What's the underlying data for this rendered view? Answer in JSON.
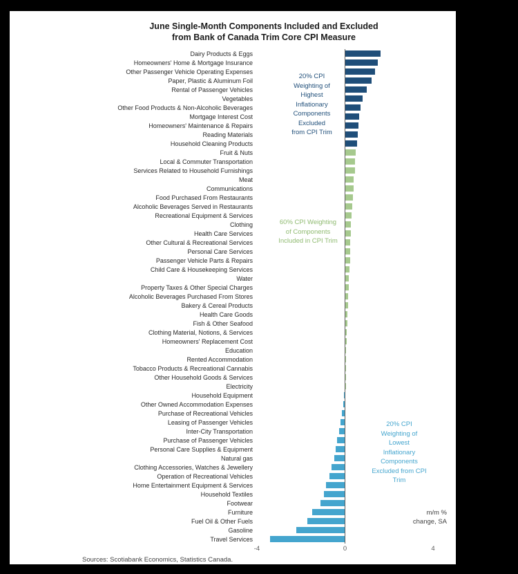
{
  "title": {
    "line1": "June Single-Month Components Included and Excluded",
    "line2": "from Bank of Canada Trim Core CPI Measure"
  },
  "source": "Sources: Scotiabank Economics, Statistics Canada.",
  "axis_note": "m/m %\nchange, SA",
  "colors": {
    "excluded_high": "#1F4E79",
    "included": "#A6C98E",
    "excluded_low": "#44A5CE",
    "zero_line": "#595959",
    "tick_text": "#595959"
  },
  "annotations": [
    {
      "text": "20% CPI\nWeighting of\nHighest\nInflationary\nComponents\nExcluded\nfrom CPI Trim",
      "color": "#1F4E79"
    },
    {
      "text": "60% CPI Weighting\nof Components\nIncluded in CPI Trim",
      "color": "#8FBA70"
    },
    {
      "text": "20% CPI\nWeighting of\nLowest\nInflationary\nComponents\nExcluded from CPI\nTrim",
      "color": "#44A5CE"
    }
  ],
  "chart_data": {
    "type": "bar",
    "orientation": "horizontal",
    "title": "June Single-Month Components Included and Excluded from Bank of Canada Trim Core CPI Measure",
    "xlabel": "m/m % change, SA",
    "xlim": [
      -4,
      4
    ],
    "ticks": [
      "-4",
      "0",
      "4"
    ],
    "grid": false,
    "series": [
      {
        "name": "20% CPI Weighting of Highest Inflationary Components Excluded from CPI Trim",
        "color": "#1F4E79",
        "items": [
          {
            "label": "Dairy Products & Eggs",
            "value": 1.6
          },
          {
            "label": "Homeowners' Home & Mortgage Insurance",
            "value": 1.5
          },
          {
            "label": "Other Passenger Vehicle Operating Expenses",
            "value": 1.35
          },
          {
            "label": "Paper, Plastic & Aluminum Foil",
            "value": 1.2
          },
          {
            "label": "Rental of Passenger Vehicles",
            "value": 1.0
          },
          {
            "label": "Vegetables",
            "value": 0.8
          },
          {
            "label": "Other Food Products & Non-Alcoholic Beverages",
            "value": 0.7
          },
          {
            "label": "Mortgage Interest Cost",
            "value": 0.65
          },
          {
            "label": "Homeowners' Maintenance & Repairs",
            "value": 0.6
          },
          {
            "label": "Reading Materials",
            "value": 0.58
          },
          {
            "label": "Household Cleaning Products",
            "value": 0.55
          }
        ]
      },
      {
        "name": "60% CPI Weighting of Components Included in CPI Trim",
        "color": "#A6C98E",
        "items": [
          {
            "label": "Fruit & Nuts",
            "value": 0.5
          },
          {
            "label": "Local & Commuter Transportation",
            "value": 0.47
          },
          {
            "label": "Services Related to Household Furnishings",
            "value": 0.44
          },
          {
            "label": "Meat",
            "value": 0.4
          },
          {
            "label": "Communications",
            "value": 0.38
          },
          {
            "label": "Food Purchased From Restaurants",
            "value": 0.35
          },
          {
            "label": "Alcoholic Beverages Served in Restaurants",
            "value": 0.33
          },
          {
            "label": "Recreational Equipment & Services",
            "value": 0.3
          },
          {
            "label": "Clothing",
            "value": 0.28
          },
          {
            "label": "Health Care Services",
            "value": 0.26
          },
          {
            "label": "Other Cultural & Recreational Services",
            "value": 0.25
          },
          {
            "label": "Personal Care Services",
            "value": 0.24
          },
          {
            "label": "Passenger Vehicle Parts & Repairs",
            "value": 0.22
          },
          {
            "label": "Child Care & Housekeeping Services",
            "value": 0.2
          },
          {
            "label": "Water",
            "value": 0.18
          },
          {
            "label": "Property Taxes & Other Special Charges",
            "value": 0.16
          },
          {
            "label": "Alcoholic Beverages Purchased From Stores",
            "value": 0.15
          },
          {
            "label": "Bakery & Cereal Products",
            "value": 0.13
          },
          {
            "label": "Health Care Goods",
            "value": 0.12
          },
          {
            "label": "Fish & Other Seafood",
            "value": 0.1
          },
          {
            "label": "Clothing Material, Notions, & Services",
            "value": 0.09
          },
          {
            "label": "Homeowners' Replacement Cost",
            "value": 0.08
          },
          {
            "label": "Education",
            "value": 0.06
          },
          {
            "label": "Rented Accommodation",
            "value": 0.05
          },
          {
            "label": "Tobacco Products & Recreational Cannabis",
            "value": 0.04
          },
          {
            "label": "Other Household Goods & Services",
            "value": 0.02
          },
          {
            "label": "Electricity",
            "value": 0.01
          }
        ]
      },
      {
        "name": "20% CPI Weighting of Lowest Inflationary Components Excluded from CPI Trim",
        "color": "#44A5CE",
        "items": [
          {
            "label": "Household Equipment",
            "value": -0.05
          },
          {
            "label": "Other Owned Accommodation Expenses",
            "value": -0.08
          },
          {
            "label": "Purchase of Recreational Vehicles",
            "value": -0.15
          },
          {
            "label": "Leasing of Passenger Vehicles",
            "value": -0.2
          },
          {
            "label": "Inter-City Transportation",
            "value": -0.28
          },
          {
            "label": "Purchase of Passenger Vehicles",
            "value": -0.35
          },
          {
            "label": "Personal Care Supplies & Equipment",
            "value": -0.42
          },
          {
            "label": "Natural gas",
            "value": -0.5
          },
          {
            "label": "Clothing Accessories, Watches & Jewellery",
            "value": -0.6
          },
          {
            "label": "Operation of Recreational Vehicles",
            "value": -0.72
          },
          {
            "label": "Home Entertainment Equipment & Services",
            "value": -0.85
          },
          {
            "label": "Household Textiles",
            "value": -0.95
          },
          {
            "label": "Footwear",
            "value": -1.1
          },
          {
            "label": "Furniture",
            "value": -1.5
          },
          {
            "label": "Fuel Oil & Other Fuels",
            "value": -1.7
          },
          {
            "label": "Gasoline",
            "value": -2.2
          },
          {
            "label": "Travel Services",
            "value": -3.4
          }
        ]
      }
    ]
  }
}
